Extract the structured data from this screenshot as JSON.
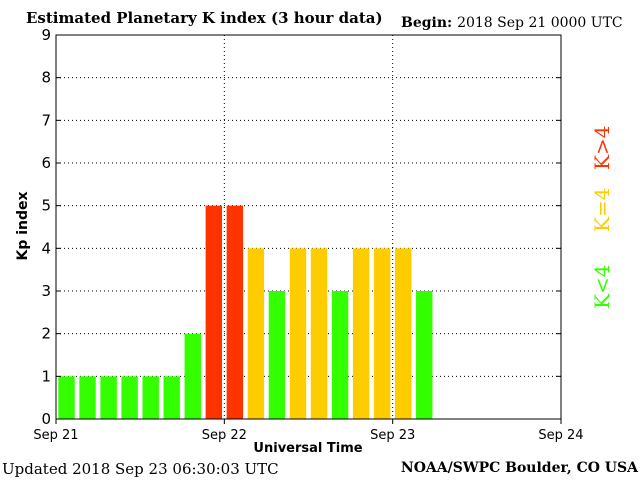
{
  "header": {
    "title": "Estimated Planetary K index (3 hour data)",
    "begin_label": "Begin:",
    "begin_value": "2018 Sep 21 0000 UTC"
  },
  "footer": {
    "updated_label": "Updated",
    "updated_value": "2018 Sep 23 06:30:03 UTC",
    "credit": "NOAA/SWPC Boulder, CO USA"
  },
  "legend": [
    {
      "label": "K>4",
      "color": "#ff3300"
    },
    {
      "label": "K=4",
      "color": "#ffcc00"
    },
    {
      "label": "K<4",
      "color": "#33ff00"
    }
  ],
  "chart_data": {
    "type": "bar",
    "title": "Estimated Planetary K index (3 hour data)",
    "xlabel": "Universal Time",
    "ylabel": "Kp index",
    "x_ticks": [
      "Sep 21",
      "Sep 22",
      "Sep 23",
      "Sep 24"
    ],
    "y_ticks": [
      0,
      1,
      2,
      3,
      4,
      5,
      6,
      7,
      8,
      9
    ],
    "ylim": [
      0,
      9
    ],
    "bars_per_day": 8,
    "values": [
      1,
      1,
      1,
      1,
      1,
      1,
      2,
      5,
      5,
      4,
      3,
      4,
      4,
      3,
      4,
      4,
      4,
      3
    ],
    "colors": {
      "below_4": "#33ff00",
      "equal_4": "#ffcc00",
      "above_4": "#ff3300"
    },
    "grid": true
  }
}
